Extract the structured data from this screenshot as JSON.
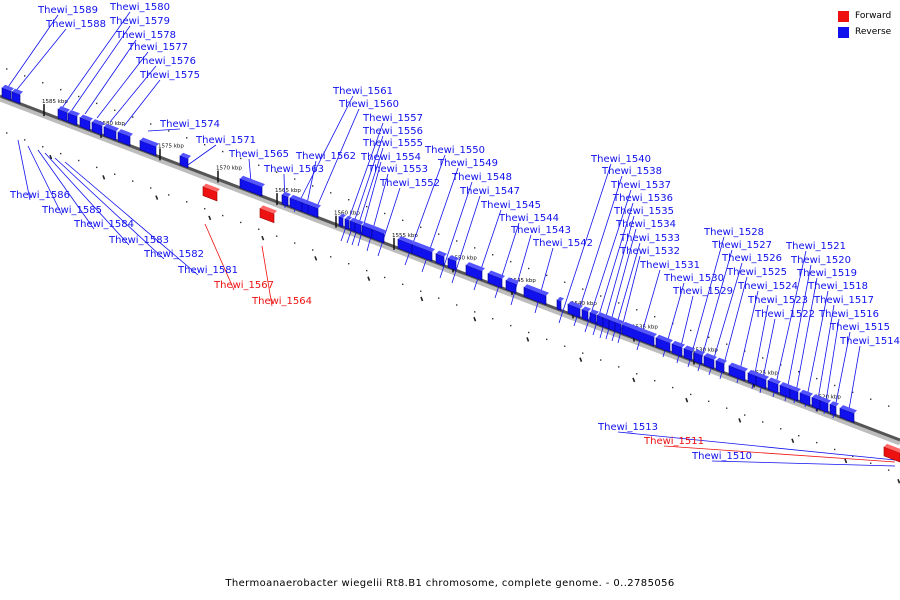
{
  "legend": {
    "forward_label": "Forward",
    "reverse_label": "Reverse",
    "forward_color": "#ee1111",
    "reverse_color": "#1111ee"
  },
  "caption": "Thermoanaerobacter wiegelii Rt8.B1 chromosome, complete genome. - 0..2785056",
  "kbp_ticks": [
    "1585 kbp",
    "1580 kbp",
    "1575 kbp",
    "1570 kbp",
    "1565 kbp",
    "1560 kbp",
    "1555 kbp",
    "1550 kbp",
    "1545 kbp",
    "1540 kbp",
    "1535 kbp",
    "1530 kbp",
    "1525 kbp",
    "1520 kbp"
  ],
  "genes": [
    {
      "name": "Thewi_1589",
      "strand": "reverse"
    },
    {
      "name": "Thewi_1588",
      "strand": "reverse"
    },
    {
      "name": "Thewi_1580",
      "strand": "reverse"
    },
    {
      "name": "Thewi_1579",
      "strand": "reverse"
    },
    {
      "name": "Thewi_1578",
      "strand": "reverse"
    },
    {
      "name": "Thewi_1577",
      "strand": "reverse"
    },
    {
      "name": "Thewi_1576",
      "strand": "reverse"
    },
    {
      "name": "Thewi_1575",
      "strand": "reverse"
    },
    {
      "name": "Thewi_1574",
      "strand": "reverse"
    },
    {
      "name": "Thewi_1571",
      "strand": "reverse"
    },
    {
      "name": "Thewi_1565",
      "strand": "reverse"
    },
    {
      "name": "Thewi_1563",
      "strand": "reverse"
    },
    {
      "name": "Thewi_1562",
      "strand": "reverse"
    },
    {
      "name": "Thewi_1561",
      "strand": "reverse"
    },
    {
      "name": "Thewi_1560",
      "strand": "reverse"
    },
    {
      "name": "Thewi_1557",
      "strand": "reverse"
    },
    {
      "name": "Thewi_1556",
      "strand": "reverse"
    },
    {
      "name": "Thewi_1555",
      "strand": "reverse"
    },
    {
      "name": "Thewi_1554",
      "strand": "reverse"
    },
    {
      "name": "Thewi_1553",
      "strand": "reverse"
    },
    {
      "name": "Thewi_1552",
      "strand": "reverse"
    },
    {
      "name": "Thewi_1550",
      "strand": "reverse"
    },
    {
      "name": "Thewi_1549",
      "strand": "reverse"
    },
    {
      "name": "Thewi_1548",
      "strand": "reverse"
    },
    {
      "name": "Thewi_1547",
      "strand": "reverse"
    },
    {
      "name": "Thewi_1545",
      "strand": "reverse"
    },
    {
      "name": "Thewi_1544",
      "strand": "reverse"
    },
    {
      "name": "Thewi_1543",
      "strand": "reverse"
    },
    {
      "name": "Thewi_1542",
      "strand": "reverse"
    },
    {
      "name": "Thewi_1540",
      "strand": "reverse"
    },
    {
      "name": "Thewi_1538",
      "strand": "reverse"
    },
    {
      "name": "Thewi_1537",
      "strand": "reverse"
    },
    {
      "name": "Thewi_1536",
      "strand": "reverse"
    },
    {
      "name": "Thewi_1535",
      "strand": "reverse"
    },
    {
      "name": "Thewi_1534",
      "strand": "reverse"
    },
    {
      "name": "Thewi_1533",
      "strand": "reverse"
    },
    {
      "name": "Thewi_1532",
      "strand": "reverse"
    },
    {
      "name": "Thewi_1531",
      "strand": "reverse"
    },
    {
      "name": "Thewi_1530",
      "strand": "reverse"
    },
    {
      "name": "Thewi_1529",
      "strand": "reverse"
    },
    {
      "name": "Thewi_1528",
      "strand": "reverse"
    },
    {
      "name": "Thewi_1527",
      "strand": "reverse"
    },
    {
      "name": "Thewi_1526",
      "strand": "reverse"
    },
    {
      "name": "Thewi_1525",
      "strand": "reverse"
    },
    {
      "name": "Thewi_1524",
      "strand": "reverse"
    },
    {
      "name": "Thewi_1523",
      "strand": "reverse"
    },
    {
      "name": "Thewi_1522",
      "strand": "reverse"
    },
    {
      "name": "Thewi_1521",
      "strand": "reverse"
    },
    {
      "name": "Thewi_1520",
      "strand": "reverse"
    },
    {
      "name": "Thewi_1519",
      "strand": "reverse"
    },
    {
      "name": "Thewi_1518",
      "strand": "reverse"
    },
    {
      "name": "Thewi_1517",
      "strand": "reverse"
    },
    {
      "name": "Thewi_1516",
      "strand": "reverse"
    },
    {
      "name": "Thewi_1515",
      "strand": "reverse"
    },
    {
      "name": "Thewi_1514",
      "strand": "reverse"
    },
    {
      "name": "Thewi_1586",
      "strand": "reverse"
    },
    {
      "name": "Thewi_1585",
      "strand": "reverse"
    },
    {
      "name": "Thewi_1584",
      "strand": "reverse"
    },
    {
      "name": "Thewi_1583",
      "strand": "reverse"
    },
    {
      "name": "Thewi_1582",
      "strand": "reverse"
    },
    {
      "name": "Thewi_1581",
      "strand": "reverse"
    },
    {
      "name": "Thewi_1567",
      "strand": "forward"
    },
    {
      "name": "Thewi_1564",
      "strand": "forward"
    },
    {
      "name": "Thewi_1513",
      "strand": "reverse"
    },
    {
      "name": "Thewi_1511",
      "strand": "forward"
    },
    {
      "name": "Thewi_1510",
      "strand": "reverse"
    }
  ]
}
